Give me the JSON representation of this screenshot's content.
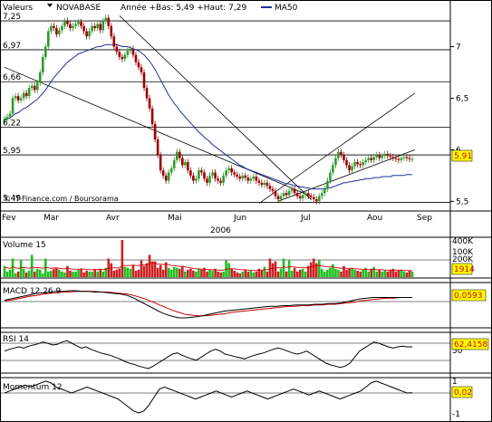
{
  "header": {
    "valeurs_label": "Valeurs",
    "stock_name": "NOVABASE",
    "range_text": "Année +Bas: 5,49 +Haut: 7,29",
    "ma_label": "MA50",
    "source": "© IT-Finance.com / Boursorama"
  },
  "colors": {
    "background": "#ffffff",
    "candle_up": "#2e9a2e",
    "candle_down": "#990000",
    "ma50": "#1f2f9e",
    "volume_up": "#1fbf1f",
    "volume_down": "#cc2222",
    "macd_signal": "#cc0000",
    "price_badge": "#ffff00",
    "price_badge_text": "#cc0000"
  },
  "chart_data": [
    {
      "type": "candlestick",
      "title": "NOVABASE",
      "left_labels": [
        "7,25",
        "6,97",
        "6,66",
        "6,22",
        "5,95",
        "5,49"
      ],
      "right_ticks": [
        "7",
        "6,5",
        "6",
        "5,5"
      ],
      "x_tick_labels": [
        "Fev",
        "Mar",
        "Avr",
        "Mai",
        "Jun",
        "Jul",
        "Aou",
        "Sep"
      ],
      "year_label": "2006",
      "last_value": "5,91",
      "year_low": 5.49,
      "year_high": 7.29,
      "ylim": [
        5.45,
        7.4
      ],
      "x_values": [
        0,
        1,
        2,
        3,
        4,
        5,
        6,
        7,
        8,
        9,
        10,
        11,
        12,
        13,
        14,
        15,
        16,
        17,
        18,
        19,
        20,
        21,
        22,
        23,
        24,
        25,
        26,
        27,
        28,
        29,
        30,
        31,
        32,
        33,
        34,
        35,
        36,
        37,
        38,
        39,
        40,
        41,
        42,
        43,
        44,
        45,
        46,
        47,
        48,
        49,
        50,
        51,
        52,
        53,
        54,
        55,
        56,
        57,
        58,
        59,
        60,
        61,
        62,
        63,
        64,
        65,
        66,
        67,
        68,
        69,
        70,
        71,
        72,
        73,
        74,
        75,
        76,
        77,
        78,
        79,
        80,
        81,
        82,
        83,
        84,
        85,
        86,
        87,
        88,
        89,
        90,
        91,
        92,
        93,
        94,
        95,
        96,
        97,
        98,
        99,
        100,
        101,
        102,
        103,
        104,
        105,
        106,
        107,
        108,
        109,
        110,
        111,
        112,
        113,
        114,
        115,
        116,
        117,
        118,
        119,
        120,
        121,
        122,
        123,
        124,
        125,
        126,
        127,
        128,
        129,
        130,
        131,
        132,
        133,
        134,
        135,
        136,
        137,
        138,
        139,
        140,
        141,
        142,
        143,
        144,
        145,
        146,
        147,
        148,
        149
      ],
      "close": [
        6.3,
        6.32,
        6.35,
        6.5,
        6.52,
        6.48,
        6.5,
        6.55,
        6.52,
        6.6,
        6.62,
        6.58,
        6.65,
        6.75,
        6.9,
        7.0,
        7.15,
        7.2,
        7.18,
        7.12,
        7.16,
        7.2,
        7.25,
        7.22,
        7.18,
        7.2,
        7.22,
        7.24,
        7.2,
        7.15,
        7.1,
        7.15,
        7.2,
        7.18,
        7.22,
        7.16,
        7.25,
        7.28,
        7.2,
        7.1,
        7.0,
        6.95,
        6.9,
        6.88,
        6.92,
        6.96,
        6.98,
        6.92,
        6.85,
        6.8,
        6.75,
        6.6,
        6.5,
        6.4,
        6.25,
        6.1,
        5.95,
        5.8,
        5.75,
        5.7,
        5.78,
        5.82,
        5.9,
        5.98,
        5.92,
        5.85,
        5.88,
        5.8,
        5.75,
        5.7,
        5.72,
        5.8,
        5.78,
        5.72,
        5.68,
        5.75,
        5.78,
        5.72,
        5.7,
        5.68,
        5.75,
        5.8,
        5.82,
        5.78,
        5.76,
        5.74,
        5.72,
        5.75,
        5.73,
        5.7,
        5.72,
        5.74,
        5.7,
        5.68,
        5.66,
        5.68,
        5.65,
        5.62,
        5.6,
        5.55,
        5.52,
        5.55,
        5.58,
        5.56,
        5.6,
        5.62,
        5.58,
        5.55,
        5.53,
        5.56,
        5.58,
        5.55,
        5.54,
        5.52,
        5.5,
        5.55,
        5.58,
        5.62,
        5.7,
        5.78,
        5.85,
        5.92,
        5.98,
        5.95,
        5.9,
        5.85,
        5.8,
        5.84,
        5.88,
        5.86,
        5.85,
        5.88,
        5.9,
        5.92,
        5.9,
        5.93,
        5.95,
        5.92,
        5.94,
        5.96,
        5.94,
        5.93,
        5.92,
        5.91,
        5.9,
        5.92,
        5.93,
        5.92,
        5.91,
        5.91
      ],
      "ma50": [
        6.3,
        6.3,
        6.31,
        6.33,
        6.35,
        6.36,
        6.38,
        6.4,
        6.41,
        6.43,
        6.45,
        6.47,
        6.49,
        6.52,
        6.55,
        6.58,
        6.62,
        6.66,
        6.7,
        6.73,
        6.76,
        6.79,
        6.82,
        6.85,
        6.87,
        6.89,
        6.91,
        6.93,
        6.94,
        6.95,
        6.96,
        6.97,
        6.98,
        6.99,
        7.0,
        7.0,
        7.01,
        7.02,
        7.02,
        7.02,
        7.02,
        7.02,
        7.01,
        7.0,
        7.0,
        7.0,
        6.99,
        6.98,
        6.97,
        6.96,
        6.94,
        6.92,
        6.89,
        6.86,
        6.82,
        6.78,
        6.73,
        6.68,
        6.63,
        6.58,
        6.53,
        6.49,
        6.45,
        6.42,
        6.38,
        6.35,
        6.32,
        6.29,
        6.26,
        6.23,
        6.2,
        6.17,
        6.15,
        6.12,
        6.1,
        6.08,
        6.05,
        6.03,
        6.01,
        5.99,
        5.97,
        5.95,
        5.93,
        5.91,
        5.89,
        5.87,
        5.85,
        5.84,
        5.82,
        5.81,
        5.8,
        5.79,
        5.78,
        5.77,
        5.76,
        5.75,
        5.74,
        5.73,
        5.72,
        5.71,
        5.7,
        5.69,
        5.68,
        5.67,
        5.67,
        5.66,
        5.65,
        5.65,
        5.64,
        5.64,
        5.63,
        5.63,
        5.62,
        5.62,
        5.62,
        5.62,
        5.62,
        5.62,
        5.63,
        5.63,
        5.64,
        5.65,
        5.66,
        5.67,
        5.68,
        5.68,
        5.69,
        5.69,
        5.7,
        5.7,
        5.71,
        5.71,
        5.72,
        5.72,
        5.72,
        5.73,
        5.73,
        5.73,
        5.74,
        5.74,
        5.74,
        5.74,
        5.75,
        5.75,
        5.75,
        5.75,
        5.75,
        5.76,
        5.76,
        5.76
      ],
      "horizontal_levels": [
        7.25,
        6.97,
        6.66,
        6.22,
        5.95,
        5.49
      ],
      "trendlines": [
        {
          "x": [
            0,
            112
          ],
          "y": [
            6.8,
            5.55
          ]
        },
        {
          "x": [
            42,
            112
          ],
          "y": [
            7.3,
            5.52
          ]
        },
        {
          "x": [
            93,
            150
          ],
          "y": [
            5.48,
            6.55
          ]
        },
        {
          "x": [
            100,
            150
          ],
          "y": [
            5.5,
            6.0
          ]
        }
      ]
    },
    {
      "type": "bar",
      "title": "Volume 15",
      "right_ticks": [
        "400K",
        "200K",
        "100K"
      ],
      "last_value": "1914",
      "values": [
        120000,
        60000,
        80000,
        200000,
        40000,
        60000,
        180000,
        90000,
        50000,
        70000,
        240000,
        60000,
        90000,
        80000,
        40000,
        200000,
        60000,
        70000,
        90000,
        100000,
        80000,
        60000,
        50000,
        120000,
        70000,
        60000,
        60000,
        80000,
        90000,
        50000,
        70000,
        60000,
        60000,
        80000,
        60000,
        90000,
        60000,
        100000,
        200000,
        150000,
        70000,
        80000,
        90000,
        400000,
        110000,
        100000,
        90000,
        130000,
        70000,
        80000,
        180000,
        120000,
        150000,
        240000,
        170000,
        170000,
        100000,
        130000,
        80000,
        160000,
        100000,
        80000,
        110000,
        100000,
        90000,
        120000,
        60000,
        80000,
        90000,
        70000,
        60000,
        90000,
        80000,
        100000,
        60000,
        80000,
        70000,
        90000,
        60000,
        50000,
        60000,
        180000,
        150000,
        90000,
        70000,
        50000,
        40000,
        60000,
        80000,
        60000,
        70000,
        50000,
        60000,
        90000,
        70000,
        110000,
        60000,
        200000,
        150000,
        170000,
        60000,
        90000,
        200000,
        60000,
        180000,
        70000,
        100000,
        60000,
        80000,
        90000,
        60000,
        120000,
        160000,
        200000,
        150000,
        180000,
        90000,
        60000,
        80000,
        100000,
        140000,
        90000,
        80000,
        60000,
        120000,
        80000,
        90000,
        100000,
        80000,
        70000,
        60000,
        80000,
        100000,
        60000,
        90000,
        110000,
        60000,
        80000,
        60000,
        70000,
        60000,
        80000,
        90000,
        60000,
        70000,
        80000,
        60000,
        50000,
        70000,
        60000
      ],
      "ma15": [
        110000,
        100000,
        95000,
        110000,
        100000,
        95000,
        100000,
        105000,
        100000,
        95000,
        110000,
        100000,
        105000,
        100000,
        95000,
        105000,
        100000,
        95000,
        100000,
        100000,
        95000,
        90000,
        90000,
        95000,
        90000,
        85000,
        85000,
        85000,
        90000,
        85000,
        85000,
        80000,
        80000,
        85000,
        80000,
        85000,
        80000,
        85000,
        95000,
        100000,
        100000,
        100000,
        100000,
        125000,
        125000,
        125000,
        125000,
        130000,
        125000,
        125000,
        130000,
        130000,
        135000,
        145000,
        150000,
        150000,
        140000,
        140000,
        135000,
        140000,
        135000,
        125000,
        125000,
        120000,
        115000,
        115000,
        110000,
        105000,
        100000,
        95000,
        90000,
        90000,
        85000,
        85000,
        80000,
        80000,
        80000,
        80000,
        75000,
        75000,
        75000,
        85000,
        90000,
        90000,
        90000,
        85000,
        80000,
        80000,
        80000,
        75000,
        75000,
        70000,
        70000,
        75000,
        75000,
        80000,
        80000,
        90000,
        95000,
        100000,
        100000,
        100000,
        110000,
        105000,
        110000,
        110000,
        110000,
        105000,
        105000,
        105000,
        100000,
        105000,
        110000,
        120000,
        120000,
        125000,
        120000,
        115000,
        110000,
        110000,
        110000,
        105000,
        100000,
        95000,
        100000,
        95000,
        95000,
        95000,
        90000,
        90000,
        85000,
        85000,
        85000,
        80000,
        80000,
        85000,
        80000,
        80000,
        80000,
        75000,
        75000,
        75000,
        75000,
        75000,
        75000,
        75000,
        70000,
        70000,
        70000,
        70000
      ]
    },
    {
      "type": "line",
      "title": "MACD 12 26 9",
      "last_value": "0,0593",
      "series": [
        {
          "values": [
            0.02,
            0.04,
            0.06,
            0.08,
            0.1,
            0.12,
            0.13,
            0.14,
            0.15,
            0.15,
            0.16,
            0.16,
            0.15,
            0.15,
            0.14,
            0.14,
            0.13,
            0.12,
            0.11,
            0.09,
            0.05,
            0.0,
            -0.05,
            -0.1,
            -0.15,
            -0.19,
            -0.22,
            -0.24,
            -0.24,
            -0.23,
            -0.22,
            -0.2,
            -0.18,
            -0.16,
            -0.14,
            -0.13,
            -0.12,
            -0.11,
            -0.1,
            -0.09,
            -0.08,
            -0.07,
            -0.07,
            -0.06,
            -0.06,
            -0.05,
            -0.05,
            -0.05,
            -0.04,
            -0.04,
            -0.03,
            -0.03,
            -0.02,
            0.0,
            0.02,
            0.04,
            0.05,
            0.06,
            0.06,
            0.06,
            0.06,
            0.06,
            0.06,
            0.06
          ]
        },
        {
          "values": [
            0.01,
            0.02,
            0.04,
            0.06,
            0.08,
            0.09,
            0.11,
            0.12,
            0.13,
            0.14,
            0.14,
            0.15,
            0.15,
            0.15,
            0.15,
            0.14,
            0.14,
            0.13,
            0.12,
            0.11,
            0.09,
            0.06,
            0.03,
            -0.01,
            -0.05,
            -0.09,
            -0.13,
            -0.16,
            -0.19,
            -0.2,
            -0.21,
            -0.21,
            -0.2,
            -0.19,
            -0.18,
            -0.16,
            -0.15,
            -0.14,
            -0.13,
            -0.12,
            -0.11,
            -0.1,
            -0.09,
            -0.08,
            -0.07,
            -0.07,
            -0.06,
            -0.06,
            -0.05,
            -0.05,
            -0.04,
            -0.04,
            -0.03,
            -0.02,
            -0.01,
            0.01,
            0.02,
            0.03,
            0.04,
            0.05,
            0.05,
            0.06,
            0.06,
            0.06
          ]
        }
      ]
    },
    {
      "type": "line",
      "title": "RSI 14",
      "right_ticks": [
        "50"
      ],
      "last_value": "62,4158",
      "values": [
        55,
        58,
        60,
        62,
        60,
        63,
        65,
        67,
        70,
        68,
        65,
        66,
        70,
        72,
        68,
        64,
        60,
        62,
        58,
        55,
        52,
        50,
        48,
        45,
        42,
        38,
        35,
        33,
        30,
        28,
        26,
        30,
        35,
        40,
        45,
        50,
        52,
        48,
        45,
        42,
        40,
        45,
        50,
        55,
        58,
        55,
        50,
        48,
        46,
        44,
        42,
        45,
        48,
        50,
        52,
        55,
        58,
        60,
        58,
        55,
        52,
        50,
        52,
        55,
        50,
        45,
        40,
        35,
        32,
        30,
        28,
        30,
        35,
        45,
        55,
        60,
        65,
        70,
        68,
        65,
        62,
        60,
        62,
        63,
        62,
        62
      ]
    },
    {
      "type": "line",
      "title": "Momentum 12",
      "right_ticks": [
        "1",
        "-1"
      ],
      "last_value": "0,02",
      "values": [
        0.0,
        0.1,
        0.2,
        0.3,
        0.4,
        0.3,
        0.4,
        0.5,
        0.6,
        0.5,
        0.3,
        0.2,
        0.1,
        0.0,
        0.1,
        0.2,
        0.3,
        0.2,
        0.1,
        0.0,
        -0.1,
        -0.2,
        -0.3,
        -0.5,
        -0.7,
        -0.9,
        -1.0,
        -0.9,
        -0.6,
        -0.2,
        0.2,
        0.3,
        0.2,
        0.1,
        0.0,
        -0.1,
        -0.2,
        -0.3,
        -0.2,
        -0.1,
        0.0,
        0.1,
        0.0,
        -0.1,
        -0.2,
        -0.1,
        0.0,
        0.1,
        0.0,
        -0.1,
        -0.2,
        -0.3,
        -0.2,
        -0.1,
        0.0,
        0.1,
        0.2,
        0.1,
        0.0,
        -0.1,
        0.0,
        0.1,
        0.0,
        -0.1,
        -0.2,
        -0.3,
        -0.2,
        -0.1,
        0.0,
        0.1,
        0.3,
        0.5,
        0.6,
        0.5,
        0.4,
        0.3,
        0.2,
        0.1,
        0.0,
        0.02
      ]
    }
  ]
}
